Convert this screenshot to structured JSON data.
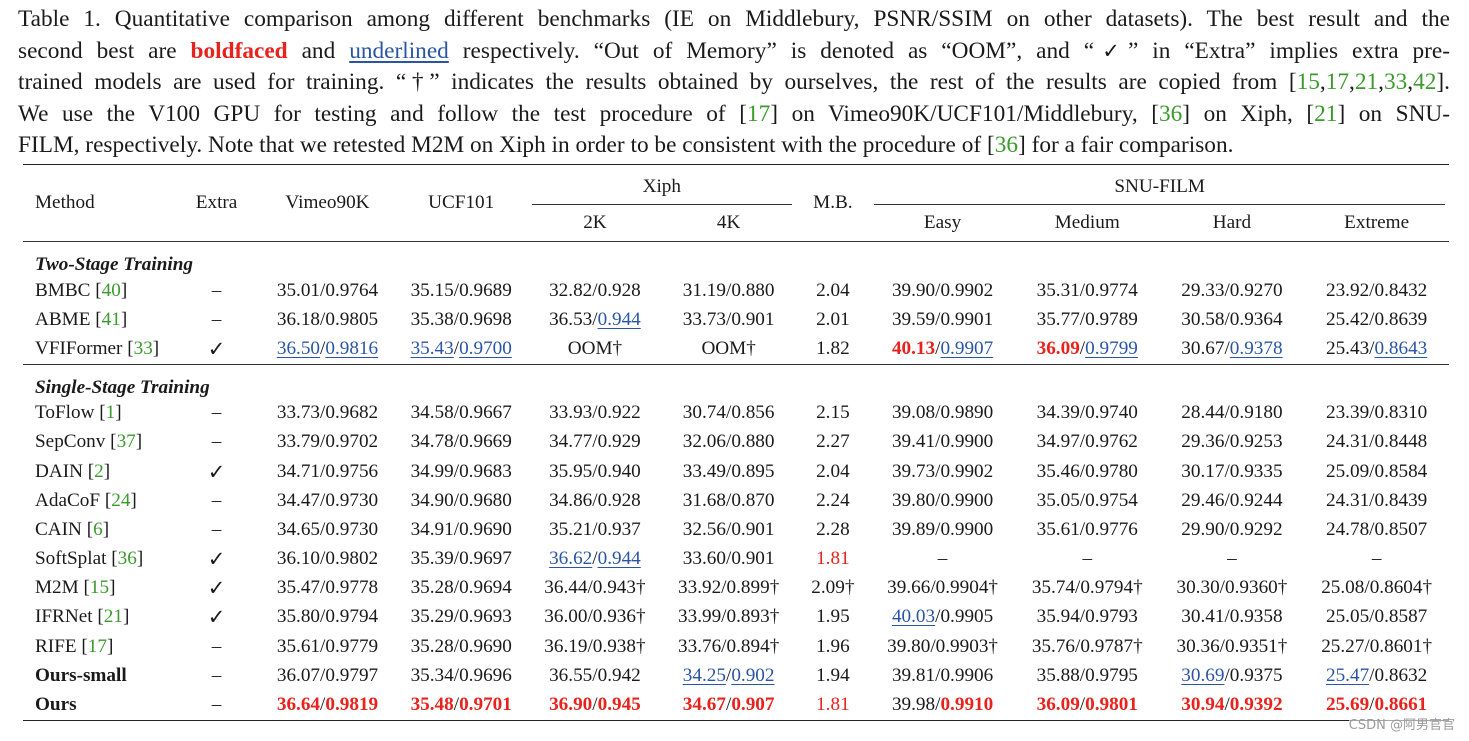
{
  "caption": {
    "line1": "Table 1. Quantitative comparison among different benchmarks (IE on Middlebury, PSNR/SSIM on other datasets). The best result and the",
    "line2a": "second best are ",
    "line2b": "boldfaced",
    "line2c": " and ",
    "line2d": "underlined",
    "line2e": " respectively.  “Out of Memory” is denoted as “OOM”, and “",
    "line2f": "✓",
    "line2g": "” in “Extra” implies extra pre-",
    "line3a": "trained models are used for training. “†” indicates the results obtained by ourselves, the rest of the results are copied from [",
    "line3b": "15",
    "line3c": "17",
    "line3d": "21",
    "line3e": "33",
    "line3f": "42",
    "line3g": "].",
    "line4a": "We use the V100 GPU for testing and follow the test procedure of [",
    "line4b": "17",
    "line4c": "] on Vimeo90K/UCF101/Middlebury, [",
    "line4d": "36",
    "line4e": "] on Xiph, [",
    "line4f": "21",
    "line4g": "] on SNU-",
    "line5a": "FILM, respectively. Note that we retested M2M on Xiph in order to be consistent with the procedure of [",
    "line5b": "36",
    "line5c": "] for a fair comparison."
  },
  "headers": {
    "method": "Method",
    "extra": "Extra",
    "vimeo": "Vimeo90K",
    "ucf": "UCF101",
    "xiph": "Xiph",
    "x2k": "2K",
    "x4k": "4K",
    "mb": "M.B.",
    "snu": "SNU-FILM",
    "easy": "Easy",
    "medium": "Medium",
    "hard": "Hard",
    "extreme": "Extreme"
  },
  "sections": {
    "two_stage": "Two-Stage Training",
    "single_stage": "Single-Stage Training"
  },
  "rows": [
    {
      "name": "BMBC",
      "ref": "40",
      "extra": "–",
      "vimeo": [
        "35.01",
        "0.9764"
      ],
      "ucf": [
        "35.15",
        "0.9689"
      ],
      "x2k": [
        "32.82",
        "0.928",
        ""
      ],
      "x4k": [
        "31.19",
        "0.880",
        ""
      ],
      "mb": "2.04",
      "easy": [
        "39.90",
        "0.9902",
        ""
      ],
      "medium": [
        "35.31",
        "0.9774",
        ""
      ],
      "hard": [
        "29.33",
        "0.9270",
        ""
      ],
      "extreme": [
        "23.92",
        "0.8432",
        ""
      ]
    },
    {
      "name": "ABME",
      "ref": "41",
      "extra": "–",
      "vimeo": [
        "36.18",
        "0.9805"
      ],
      "ucf": [
        "35.38",
        "0.9698"
      ],
      "x2k": [
        "36.53",
        "0.944",
        ""
      ],
      "x4k": [
        "33.73",
        "0.901",
        ""
      ],
      "mb": "2.01",
      "easy": [
        "39.59",
        "0.9901",
        ""
      ],
      "medium": [
        "35.77",
        "0.9789",
        ""
      ],
      "hard": [
        "30.58",
        "0.9364",
        ""
      ],
      "extreme": [
        "25.42",
        "0.8639",
        ""
      ]
    },
    {
      "name": "VFIFormer",
      "ref": "33",
      "extra": "✓",
      "vimeo": [
        "36.50",
        "0.9816"
      ],
      "ucf": [
        "35.43",
        "0.9700"
      ],
      "x2k_text": "OOM†",
      "x4k_text": "OOM†",
      "mb": "1.82",
      "easy": [
        "40.13",
        "0.9907",
        ""
      ],
      "medium": [
        "36.09",
        "0.9799",
        ""
      ],
      "hard": [
        "30.67",
        "0.9378",
        ""
      ],
      "extreme": [
        "25.43",
        "0.8643",
        ""
      ]
    },
    {
      "name": "ToFlow",
      "ref": "1",
      "extra": "–",
      "vimeo": [
        "33.73",
        "0.9682"
      ],
      "ucf": [
        "34.58",
        "0.9667"
      ],
      "x2k": [
        "33.93",
        "0.922",
        ""
      ],
      "x4k": [
        "30.74",
        "0.856",
        ""
      ],
      "mb": "2.15",
      "easy": [
        "39.08",
        "0.9890",
        ""
      ],
      "medium": [
        "34.39",
        "0.9740",
        ""
      ],
      "hard": [
        "28.44",
        "0.9180",
        ""
      ],
      "extreme": [
        "23.39",
        "0.8310",
        ""
      ]
    },
    {
      "name": "SepConv",
      "ref": "37",
      "extra": "–",
      "vimeo": [
        "33.79",
        "0.9702"
      ],
      "ucf": [
        "34.78",
        "0.9669"
      ],
      "x2k": [
        "34.77",
        "0.929",
        ""
      ],
      "x4k": [
        "32.06",
        "0.880",
        ""
      ],
      "mb": "2.27",
      "easy": [
        "39.41",
        "0.9900",
        ""
      ],
      "medium": [
        "34.97",
        "0.9762",
        ""
      ],
      "hard": [
        "29.36",
        "0.9253",
        ""
      ],
      "extreme": [
        "24.31",
        "0.8448",
        ""
      ]
    },
    {
      "name": "DAIN",
      "ref": "2",
      "extra": "✓",
      "vimeo": [
        "34.71",
        "0.9756"
      ],
      "ucf": [
        "34.99",
        "0.9683"
      ],
      "x2k": [
        "35.95",
        "0.940",
        ""
      ],
      "x4k": [
        "33.49",
        "0.895",
        ""
      ],
      "mb": "2.04",
      "easy": [
        "39.73",
        "0.9902",
        ""
      ],
      "medium": [
        "35.46",
        "0.9780",
        ""
      ],
      "hard": [
        "30.17",
        "0.9335",
        ""
      ],
      "extreme": [
        "25.09",
        "0.8584",
        ""
      ]
    },
    {
      "name": "AdaCoF",
      "ref": "24",
      "extra": "–",
      "vimeo": [
        "34.47",
        "0.9730"
      ],
      "ucf": [
        "34.90",
        "0.9680"
      ],
      "x2k": [
        "34.86",
        "0.928",
        ""
      ],
      "x4k": [
        "31.68",
        "0.870",
        ""
      ],
      "mb": "2.24",
      "easy": [
        "39.80",
        "0.9900",
        ""
      ],
      "medium": [
        "35.05",
        "0.9754",
        ""
      ],
      "hard": [
        "29.46",
        "0.9244",
        ""
      ],
      "extreme": [
        "24.31",
        "0.8439",
        ""
      ]
    },
    {
      "name": "CAIN",
      "ref": "6",
      "extra": "–",
      "vimeo": [
        "34.65",
        "0.9730"
      ],
      "ucf": [
        "34.91",
        "0.9690"
      ],
      "x2k": [
        "35.21",
        "0.937",
        ""
      ],
      "x4k": [
        "32.56",
        "0.901",
        ""
      ],
      "mb": "2.28",
      "easy": [
        "39.89",
        "0.9900",
        ""
      ],
      "medium": [
        "35.61",
        "0.9776",
        ""
      ],
      "hard": [
        "29.90",
        "0.9292",
        ""
      ],
      "extreme": [
        "24.78",
        "0.8507",
        ""
      ]
    },
    {
      "name": "SoftSplat",
      "ref": "36",
      "extra": "✓",
      "vimeo": [
        "36.10",
        "0.9802"
      ],
      "ucf": [
        "35.39",
        "0.9697"
      ],
      "x2k": [
        "36.62",
        "0.944",
        ""
      ],
      "x4k": [
        "33.60",
        "0.901",
        ""
      ],
      "mb": "1.81",
      "easy_text": "–",
      "medium_text": "–",
      "hard_text": "–",
      "extreme_text": "–"
    },
    {
      "name": "M2M",
      "ref": "15",
      "extra": "✓",
      "vimeo": [
        "35.47",
        "0.9778"
      ],
      "ucf": [
        "35.28",
        "0.9694"
      ],
      "x2k": [
        "36.44",
        "0.943",
        "†"
      ],
      "x4k": [
        "33.92",
        "0.899",
        "†"
      ],
      "mb": "2.09†",
      "easy": [
        "39.66",
        "0.9904",
        "†"
      ],
      "medium": [
        "35.74",
        "0.9794",
        "†"
      ],
      "hard": [
        "30.30",
        "0.9360",
        "†"
      ],
      "extreme": [
        "25.08",
        "0.8604",
        "†"
      ]
    },
    {
      "name": "IFRNet",
      "ref": "21",
      "extra": "✓",
      "vimeo": [
        "35.80",
        "0.9794"
      ],
      "ucf": [
        "35.29",
        "0.9693"
      ],
      "x2k": [
        "36.00",
        "0.936",
        "†"
      ],
      "x4k": [
        "33.99",
        "0.893",
        "†"
      ],
      "mb": "1.95",
      "easy": [
        "40.03",
        "0.9905",
        ""
      ],
      "medium": [
        "35.94",
        "0.9793",
        ""
      ],
      "hard": [
        "30.41",
        "0.9358",
        ""
      ],
      "extreme": [
        "25.05",
        "0.8587",
        ""
      ]
    },
    {
      "name": "RIFE",
      "ref": "17",
      "extra": "–",
      "vimeo": [
        "35.61",
        "0.9779"
      ],
      "ucf": [
        "35.28",
        "0.9690"
      ],
      "x2k": [
        "36.19",
        "0.938",
        "†"
      ],
      "x4k": [
        "33.76",
        "0.894",
        "†"
      ],
      "mb": "1.96",
      "easy": [
        "39.80",
        "0.9903",
        "†"
      ],
      "medium": [
        "35.76",
        "0.9787",
        "†"
      ],
      "hard": [
        "30.36",
        "0.9351",
        "†"
      ],
      "extreme": [
        "25.27",
        "0.8601",
        "†"
      ]
    },
    {
      "name": "Ours-small",
      "ref": "",
      "extra": "–",
      "vimeo": [
        "36.07",
        "0.9797"
      ],
      "ucf": [
        "35.34",
        "0.9696"
      ],
      "x2k": [
        "36.55",
        "0.942",
        ""
      ],
      "x4k": [
        "34.25",
        "0.902",
        ""
      ],
      "mb": "1.94",
      "easy": [
        "39.81",
        "0.9906",
        ""
      ],
      "medium": [
        "35.88",
        "0.9795",
        ""
      ],
      "hard": [
        "30.69",
        "0.9375",
        ""
      ],
      "extreme": [
        "25.47",
        "0.8632",
        ""
      ]
    },
    {
      "name": "Ours",
      "ref": "",
      "extra": "–",
      "vimeo": [
        "36.64",
        "0.9819"
      ],
      "ucf": [
        "35.48",
        "0.9701"
      ],
      "x2k": [
        "36.90",
        "0.945",
        ""
      ],
      "x4k": [
        "34.67",
        "0.907",
        ""
      ],
      "mb": "1.81",
      "easy": [
        "39.98",
        "0.9910",
        ""
      ],
      "medium": [
        "36.09",
        "0.9801",
        ""
      ],
      "hard": [
        "30.94",
        "0.9392",
        ""
      ],
      "extreme": [
        "25.69",
        "0.8661",
        ""
      ]
    }
  ],
  "watermark": "CSDN @阿男官官"
}
